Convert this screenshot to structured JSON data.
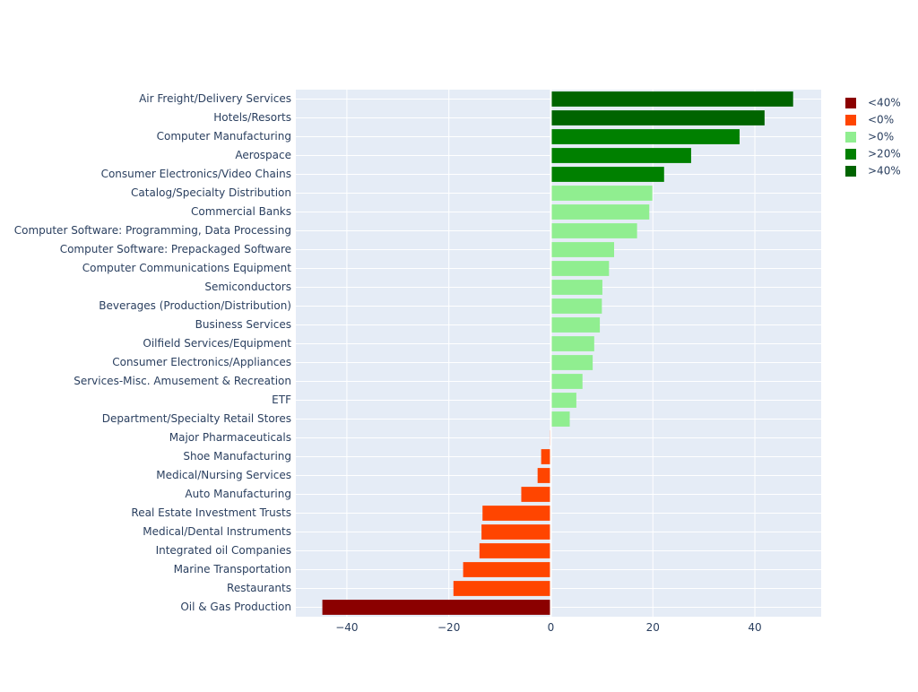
{
  "chart_data": {
    "type": "bar",
    "orientation": "horizontal",
    "categories": [
      "Air Freight/Delivery Services",
      "Hotels/Resorts",
      "Computer Manufacturing",
      "Aerospace",
      "Consumer Electronics/Video Chains",
      "Catalog/Specialty Distribution",
      "Commercial Banks",
      "Computer Software: Programming, Data Processing",
      "Computer Software: Prepackaged Software",
      "Computer Communications Equipment",
      "Semiconductors",
      "Beverages (Production/Distribution)",
      "Business Services",
      "Oilfield Services/Equipment",
      "Consumer Electronics/Appliances",
      "Services-Misc. Amusement & Recreation",
      "ETF",
      "Department/Specialty Retail Stores",
      "Major Pharmaceuticals",
      "Shoe Manufacturing",
      "Medical/Nursing Services",
      "Auto Manufacturing",
      "Real Estate Investment Trusts",
      "Medical/Dental Instruments",
      "Integrated oil Companies",
      "Marine Transportation",
      "Restaurants",
      "Oil & Gas Production"
    ],
    "values": [
      47.5,
      41.9,
      37.0,
      27.5,
      22.2,
      19.9,
      19.3,
      16.9,
      12.4,
      11.4,
      10.1,
      10.0,
      9.6,
      8.5,
      8.2,
      6.2,
      5.0,
      3.7,
      -0.2,
      -1.9,
      -2.6,
      -5.8,
      -13.4,
      -13.6,
      -14.0,
      -17.2,
      -19.1,
      -44.8
    ],
    "bucket": [
      ">40%",
      ">40%",
      ">20%",
      ">20%",
      ">20%",
      ">0%",
      ">0%",
      ">0%",
      ">0%",
      ">0%",
      ">0%",
      ">0%",
      ">0%",
      ">0%",
      ">0%",
      ">0%",
      ">0%",
      ">0%",
      "<0%",
      "<0%",
      "<0%",
      "<0%",
      "<0%",
      "<0%",
      "<0%",
      "<0%",
      "<0%",
      "<40%"
    ],
    "legend": [
      {
        "name": "<40%",
        "color": "#8b0000"
      },
      {
        "name": "<0%",
        "color": "#ff4500"
      },
      {
        "name": ">0%",
        "color": "#90ee90"
      },
      {
        "name": ">20%",
        "color": "#008000"
      },
      {
        "name": ">40%",
        "color": "#006400"
      }
    ],
    "xlim": [
      -50,
      53
    ],
    "xticks": [
      -40,
      -20,
      0,
      20,
      40
    ],
    "xtick_labels": [
      "−40",
      "−20",
      "0",
      "20",
      "40"
    ],
    "grid": true,
    "legend_position": "top-right",
    "title": "",
    "xlabel": "",
    "ylabel": "",
    "plot_background": "#e5ecf6"
  }
}
